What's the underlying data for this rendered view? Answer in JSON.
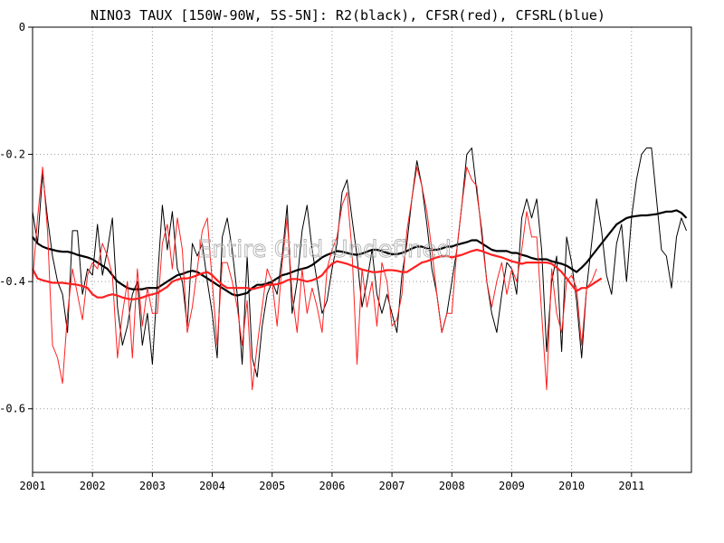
{
  "chart_data": {
    "type": "line",
    "title": "NINO3 TAUX [150W-90W, 5S-5N]: R2(black), CFSR(red), CFSRL(blue)",
    "watermark": "Entire Grid Undefined",
    "xlabel": "",
    "ylabel": "",
    "x_ticks": [
      "2001",
      "2002",
      "2003",
      "2004",
      "2005",
      "2006",
      "2007",
      "2008",
      "2009",
      "2010",
      "2011"
    ],
    "y_ticks": [
      {
        "value": 0,
        "label": "0"
      },
      {
        "value": -0.2,
        "label": "-0.2"
      },
      {
        "value": -0.4,
        "label": "-0.4"
      },
      {
        "value": -0.6,
        "label": "-0.6"
      }
    ],
    "xlim": [
      2001.0,
      2012.0
    ],
    "ylim": [
      -0.7,
      0.0
    ],
    "grid": true,
    "series": [
      {
        "name": "R2(black)",
        "color": "#000000",
        "width": 1,
        "x": [
          2001.0,
          2001.083,
          2001.167,
          2001.25,
          2001.333,
          2001.417,
          2001.5,
          2001.583,
          2001.667,
          2001.75,
          2001.833,
          2001.917,
          2002.0,
          2002.083,
          2002.167,
          2002.25,
          2002.333,
          2002.417,
          2002.5,
          2002.583,
          2002.667,
          2002.75,
          2002.833,
          2002.917,
          2003.0,
          2003.083,
          2003.167,
          2003.25,
          2003.333,
          2003.417,
          2003.5,
          2003.583,
          2003.667,
          2003.75,
          2003.833,
          2003.917,
          2004.0,
          2004.083,
          2004.167,
          2004.25,
          2004.333,
          2004.417,
          2004.5,
          2004.583,
          2004.667,
          2004.75,
          2004.833,
          2004.917,
          2005.0,
          2005.083,
          2005.167,
          2005.25,
          2005.333,
          2005.417,
          2005.5,
          2005.583,
          2005.667,
          2005.75,
          2005.833,
          2005.917,
          2006.0,
          2006.083,
          2006.167,
          2006.25,
          2006.333,
          2006.417,
          2006.5,
          2006.583,
          2006.667,
          2006.75,
          2006.833,
          2006.917,
          2007.0,
          2007.083,
          2007.167,
          2007.25,
          2007.333,
          2007.417,
          2007.5,
          2007.583,
          2007.667,
          2007.75,
          2007.833,
          2007.917,
          2008.0,
          2008.083,
          2008.167,
          2008.25,
          2008.333,
          2008.417,
          2008.5,
          2008.583,
          2008.667,
          2008.75,
          2008.833,
          2008.917,
          2009.0,
          2009.083,
          2009.167,
          2009.25,
          2009.333,
          2009.417,
          2009.5,
          2009.583,
          2009.667,
          2009.75,
          2009.833,
          2009.917,
          2010.0,
          2010.083,
          2010.167,
          2010.25,
          2010.333,
          2010.417,
          2010.5,
          2010.583,
          2010.667,
          2010.75,
          2010.833,
          2010.917,
          2011.0,
          2011.083,
          2011.167,
          2011.25,
          2011.333,
          2011.417,
          2011.5,
          2011.583,
          2011.667,
          2011.75,
          2011.833,
          2011.917
        ],
        "y": [
          -0.29,
          -0.34,
          -0.23,
          -0.3,
          -0.36,
          -0.4,
          -0.42,
          -0.48,
          -0.32,
          -0.32,
          -0.42,
          -0.38,
          -0.39,
          -0.31,
          -0.39,
          -0.35,
          -0.3,
          -0.44,
          -0.5,
          -0.47,
          -0.42,
          -0.4,
          -0.5,
          -0.45,
          -0.53,
          -0.4,
          -0.28,
          -0.35,
          -0.29,
          -0.38,
          -0.4,
          -0.47,
          -0.34,
          -0.36,
          -0.34,
          -0.4,
          -0.45,
          -0.52,
          -0.33,
          -0.3,
          -0.35,
          -0.42,
          -0.53,
          -0.36,
          -0.52,
          -0.55,
          -0.47,
          -0.42,
          -0.4,
          -0.42,
          -0.36,
          -0.28,
          -0.45,
          -0.4,
          -0.32,
          -0.28,
          -0.35,
          -0.4,
          -0.45,
          -0.43,
          -0.38,
          -0.34,
          -0.26,
          -0.24,
          -0.3,
          -0.36,
          -0.44,
          -0.4,
          -0.35,
          -0.42,
          -0.45,
          -0.42,
          -0.45,
          -0.48,
          -0.39,
          -0.34,
          -0.27,
          -0.21,
          -0.25,
          -0.31,
          -0.38,
          -0.42,
          -0.48,
          -0.45,
          -0.4,
          -0.35,
          -0.28,
          -0.2,
          -0.19,
          -0.26,
          -0.32,
          -0.4,
          -0.45,
          -0.48,
          -0.42,
          -0.37,
          -0.38,
          -0.42,
          -0.3,
          -0.27,
          -0.3,
          -0.27,
          -0.35,
          -0.51,
          -0.4,
          -0.36,
          -0.51,
          -0.33,
          -0.37,
          -0.43,
          -0.52,
          -0.41,
          -0.34,
          -0.27,
          -0.32,
          -0.39,
          -0.42,
          -0.34,
          -0.31,
          -0.4,
          -0.3,
          -0.24,
          -0.2,
          -0.19,
          -0.19,
          -0.27,
          -0.35,
          -0.36,
          -0.41,
          -0.33,
          -0.3,
          -0.32
        ]
      },
      {
        "name": "R2(black) smoothed",
        "color": "#000000",
        "width": 2.2,
        "x": [
          2001.0,
          2001.083,
          2001.167,
          2001.25,
          2001.333,
          2001.417,
          2001.5,
          2001.583,
          2001.667,
          2001.75,
          2001.833,
          2001.917,
          2002.0,
          2002.083,
          2002.167,
          2002.25,
          2002.333,
          2002.417,
          2002.5,
          2002.583,
          2002.667,
          2002.75,
          2002.833,
          2002.917,
          2003.0,
          2003.083,
          2003.167,
          2003.25,
          2003.333,
          2003.417,
          2003.5,
          2003.583,
          2003.667,
          2003.75,
          2003.833,
          2003.917,
          2004.0,
          2004.083,
          2004.167,
          2004.25,
          2004.333,
          2004.417,
          2004.5,
          2004.583,
          2004.667,
          2004.75,
          2004.833,
          2004.917,
          2005.0,
          2005.083,
          2005.167,
          2005.25,
          2005.333,
          2005.417,
          2005.5,
          2005.583,
          2005.667,
          2005.75,
          2005.833,
          2005.917,
          2006.0,
          2006.083,
          2006.167,
          2006.25,
          2006.333,
          2006.417,
          2006.5,
          2006.583,
          2006.667,
          2006.75,
          2006.833,
          2006.917,
          2007.0,
          2007.083,
          2007.167,
          2007.25,
          2007.333,
          2007.417,
          2007.5,
          2007.583,
          2007.667,
          2007.75,
          2007.833,
          2007.917,
          2008.0,
          2008.083,
          2008.167,
          2008.25,
          2008.333,
          2008.417,
          2008.5,
          2008.583,
          2008.667,
          2008.75,
          2008.833,
          2008.917,
          2009.0,
          2009.083,
          2009.167,
          2009.25,
          2009.333,
          2009.417,
          2009.5,
          2009.583,
          2009.667,
          2009.75,
          2009.833,
          2009.917,
          2010.0,
          2010.083,
          2010.167,
          2010.25,
          2010.333,
          2010.417,
          2010.5,
          2010.583,
          2010.667,
          2010.75,
          2010.833,
          2010.917,
          2011.0,
          2011.083,
          2011.167,
          2011.25,
          2011.333,
          2011.417,
          2011.5,
          2011.583,
          2011.667,
          2011.75,
          2011.833,
          2011.917
        ],
        "y": [
          -0.33,
          -0.34,
          -0.345,
          -0.348,
          -0.35,
          -0.352,
          -0.353,
          -0.353,
          -0.355,
          -0.358,
          -0.36,
          -0.362,
          -0.365,
          -0.37,
          -0.375,
          -0.38,
          -0.39,
          -0.4,
          -0.405,
          -0.41,
          -0.412,
          -0.412,
          -0.412,
          -0.41,
          -0.41,
          -0.41,
          -0.405,
          -0.4,
          -0.395,
          -0.39,
          -0.388,
          -0.385,
          -0.383,
          -0.385,
          -0.39,
          -0.395,
          -0.4,
          -0.405,
          -0.41,
          -0.415,
          -0.42,
          -0.422,
          -0.42,
          -0.418,
          -0.41,
          -0.405,
          -0.405,
          -0.403,
          -0.4,
          -0.395,
          -0.39,
          -0.388,
          -0.385,
          -0.382,
          -0.38,
          -0.378,
          -0.374,
          -0.368,
          -0.362,
          -0.358,
          -0.355,
          -0.352,
          -0.353,
          -0.355,
          -0.357,
          -0.358,
          -0.356,
          -0.353,
          -0.35,
          -0.35,
          -0.352,
          -0.355,
          -0.357,
          -0.357,
          -0.355,
          -0.352,
          -0.348,
          -0.345,
          -0.345,
          -0.348,
          -0.35,
          -0.35,
          -0.348,
          -0.345,
          -0.345,
          -0.342,
          -0.34,
          -0.338,
          -0.335,
          -0.335,
          -0.34,
          -0.345,
          -0.35,
          -0.352,
          -0.352,
          -0.352,
          -0.355,
          -0.355,
          -0.358,
          -0.36,
          -0.363,
          -0.365,
          -0.365,
          -0.365,
          -0.368,
          -0.37,
          -0.372,
          -0.375,
          -0.38,
          -0.385,
          -0.378,
          -0.37,
          -0.36,
          -0.35,
          -0.34,
          -0.33,
          -0.32,
          -0.31,
          -0.305,
          -0.3,
          -0.298,
          -0.297,
          -0.296,
          -0.296,
          -0.295,
          -0.294,
          -0.292,
          -0.29,
          -0.29,
          -0.288,
          -0.292,
          -0.3
        ]
      },
      {
        "name": "CFSR(red)",
        "color": "#ff2020",
        "width": 1,
        "x": [
          2001.0,
          2001.083,
          2001.167,
          2001.25,
          2001.333,
          2001.417,
          2001.5,
          2001.583,
          2001.667,
          2001.75,
          2001.833,
          2001.917,
          2002.0,
          2002.083,
          2002.167,
          2002.25,
          2002.333,
          2002.417,
          2002.5,
          2002.583,
          2002.667,
          2002.75,
          2002.833,
          2002.917,
          2003.0,
          2003.083,
          2003.167,
          2003.25,
          2003.333,
          2003.417,
          2003.5,
          2003.583,
          2003.667,
          2003.75,
          2003.833,
          2003.917,
          2004.0,
          2004.083,
          2004.167,
          2004.25,
          2004.333,
          2004.417,
          2004.5,
          2004.583,
          2004.667,
          2004.75,
          2004.833,
          2004.917,
          2005.0,
          2005.083,
          2005.167,
          2005.25,
          2005.333,
          2005.417,
          2005.5,
          2005.583,
          2005.667,
          2005.75,
          2005.833,
          2005.917,
          2006.0,
          2006.083,
          2006.167,
          2006.25,
          2006.333,
          2006.417,
          2006.5,
          2006.583,
          2006.667,
          2006.75,
          2006.833,
          2006.917,
          2007.0,
          2007.083,
          2007.167,
          2007.25,
          2007.333,
          2007.417,
          2007.5,
          2007.583,
          2007.667,
          2007.75,
          2007.833,
          2007.917,
          2008.0,
          2008.083,
          2008.167,
          2008.25,
          2008.333,
          2008.417,
          2008.5,
          2008.583,
          2008.667,
          2008.75,
          2008.833,
          2008.917,
          2009.0,
          2009.083,
          2009.167,
          2009.25,
          2009.333,
          2009.417,
          2009.5,
          2009.583,
          2009.667,
          2009.75,
          2009.833,
          2009.917,
          2010.0,
          2010.083,
          2010.167,
          2010.25,
          2010.333,
          2010.417
        ],
        "y": [
          -0.4,
          -0.3,
          -0.22,
          -0.32,
          -0.5,
          -0.52,
          -0.56,
          -0.45,
          -0.38,
          -0.42,
          -0.46,
          -0.39,
          -0.37,
          -0.38,
          -0.34,
          -0.36,
          -0.39,
          -0.52,
          -0.45,
          -0.4,
          -0.52,
          -0.38,
          -0.47,
          -0.41,
          -0.45,
          -0.45,
          -0.34,
          -0.31,
          -0.38,
          -0.3,
          -0.35,
          -0.48,
          -0.44,
          -0.38,
          -0.32,
          -0.3,
          -0.4,
          -0.5,
          -0.37,
          -0.37,
          -0.4,
          -0.44,
          -0.5,
          -0.43,
          -0.57,
          -0.5,
          -0.44,
          -0.38,
          -0.4,
          -0.47,
          -0.37,
          -0.3,
          -0.42,
          -0.48,
          -0.38,
          -0.45,
          -0.41,
          -0.44,
          -0.48,
          -0.38,
          -0.35,
          -0.33,
          -0.28,
          -0.26,
          -0.35,
          -0.53,
          -0.38,
          -0.44,
          -0.4,
          -0.47,
          -0.37,
          -0.4,
          -0.47,
          -0.46,
          -0.42,
          -0.32,
          -0.27,
          -0.22,
          -0.25,
          -0.29,
          -0.35,
          -0.42,
          -0.48,
          -0.45,
          -0.45,
          -0.35,
          -0.28,
          -0.22,
          -0.24,
          -0.25,
          -0.33,
          -0.4,
          -0.44,
          -0.4,
          -0.37,
          -0.42,
          -0.38,
          -0.4,
          -0.35,
          -0.29,
          -0.33,
          -0.33,
          -0.45,
          -0.57,
          -0.38,
          -0.45,
          -0.48,
          -0.4,
          -0.39,
          -0.41,
          -0.5,
          -0.41,
          -0.4,
          -0.38
        ]
      },
      {
        "name": "CFSR(red) smoothed",
        "color": "#ff2020",
        "width": 2.2,
        "x": [
          2001.0,
          2001.083,
          2001.167,
          2001.25,
          2001.333,
          2001.417,
          2001.5,
          2001.583,
          2001.667,
          2001.75,
          2001.833,
          2001.917,
          2002.0,
          2002.083,
          2002.167,
          2002.25,
          2002.333,
          2002.417,
          2002.5,
          2002.583,
          2002.667,
          2002.75,
          2002.833,
          2002.917,
          2003.0,
          2003.083,
          2003.167,
          2003.25,
          2003.333,
          2003.417,
          2003.5,
          2003.583,
          2003.667,
          2003.75,
          2003.833,
          2003.917,
          2004.0,
          2004.083,
          2004.167,
          2004.25,
          2004.333,
          2004.417,
          2004.5,
          2004.583,
          2004.667,
          2004.75,
          2004.833,
          2004.917,
          2005.0,
          2005.083,
          2005.167,
          2005.25,
          2005.333,
          2005.417,
          2005.5,
          2005.583,
          2005.667,
          2005.75,
          2005.833,
          2005.917,
          2006.0,
          2006.083,
          2006.167,
          2006.25,
          2006.333,
          2006.417,
          2006.5,
          2006.583,
          2006.667,
          2006.75,
          2006.833,
          2006.917,
          2007.0,
          2007.083,
          2007.167,
          2007.25,
          2007.333,
          2007.417,
          2007.5,
          2007.583,
          2007.667,
          2007.75,
          2007.833,
          2007.917,
          2008.0,
          2008.083,
          2008.167,
          2008.25,
          2008.333,
          2008.417,
          2008.5,
          2008.583,
          2008.667,
          2008.75,
          2008.833,
          2008.917,
          2009.0,
          2009.083,
          2009.167,
          2009.25,
          2009.333,
          2009.417,
          2009.5,
          2009.583,
          2009.667,
          2009.75,
          2009.833,
          2009.917,
          2010.0,
          2010.083,
          2010.167,
          2010.25,
          2010.333,
          2010.417,
          2010.5
        ],
        "y": [
          -0.38,
          -0.395,
          -0.398,
          -0.4,
          -0.402,
          -0.402,
          -0.402,
          -0.403,
          -0.404,
          -0.405,
          -0.407,
          -0.41,
          -0.42,
          -0.425,
          -0.425,
          -0.422,
          -0.42,
          -0.422,
          -0.425,
          -0.427,
          -0.428,
          -0.427,
          -0.425,
          -0.422,
          -0.42,
          -0.418,
          -0.413,
          -0.408,
          -0.4,
          -0.397,
          -0.395,
          -0.395,
          -0.393,
          -0.39,
          -0.387,
          -0.385,
          -0.39,
          -0.398,
          -0.405,
          -0.41,
          -0.41,
          -0.41,
          -0.41,
          -0.41,
          -0.412,
          -0.41,
          -0.408,
          -0.405,
          -0.405,
          -0.404,
          -0.402,
          -0.398,
          -0.396,
          -0.396,
          -0.398,
          -0.4,
          -0.398,
          -0.395,
          -0.39,
          -0.38,
          -0.372,
          -0.368,
          -0.37,
          -0.372,
          -0.375,
          -0.378,
          -0.381,
          -0.383,
          -0.385,
          -0.385,
          -0.384,
          -0.382,
          -0.382,
          -0.383,
          -0.385,
          -0.385,
          -0.38,
          -0.375,
          -0.37,
          -0.368,
          -0.365,
          -0.362,
          -0.36,
          -0.36,
          -0.362,
          -0.36,
          -0.358,
          -0.355,
          -0.352,
          -0.35,
          -0.352,
          -0.355,
          -0.358,
          -0.36,
          -0.362,
          -0.365,
          -0.368,
          -0.37,
          -0.372,
          -0.37,
          -0.37,
          -0.37,
          -0.37,
          -0.37,
          -0.372,
          -0.378,
          -0.385,
          -0.395,
          -0.405,
          -0.415,
          -0.41,
          -0.41,
          -0.405,
          -0.4,
          -0.395
        ]
      }
    ]
  }
}
